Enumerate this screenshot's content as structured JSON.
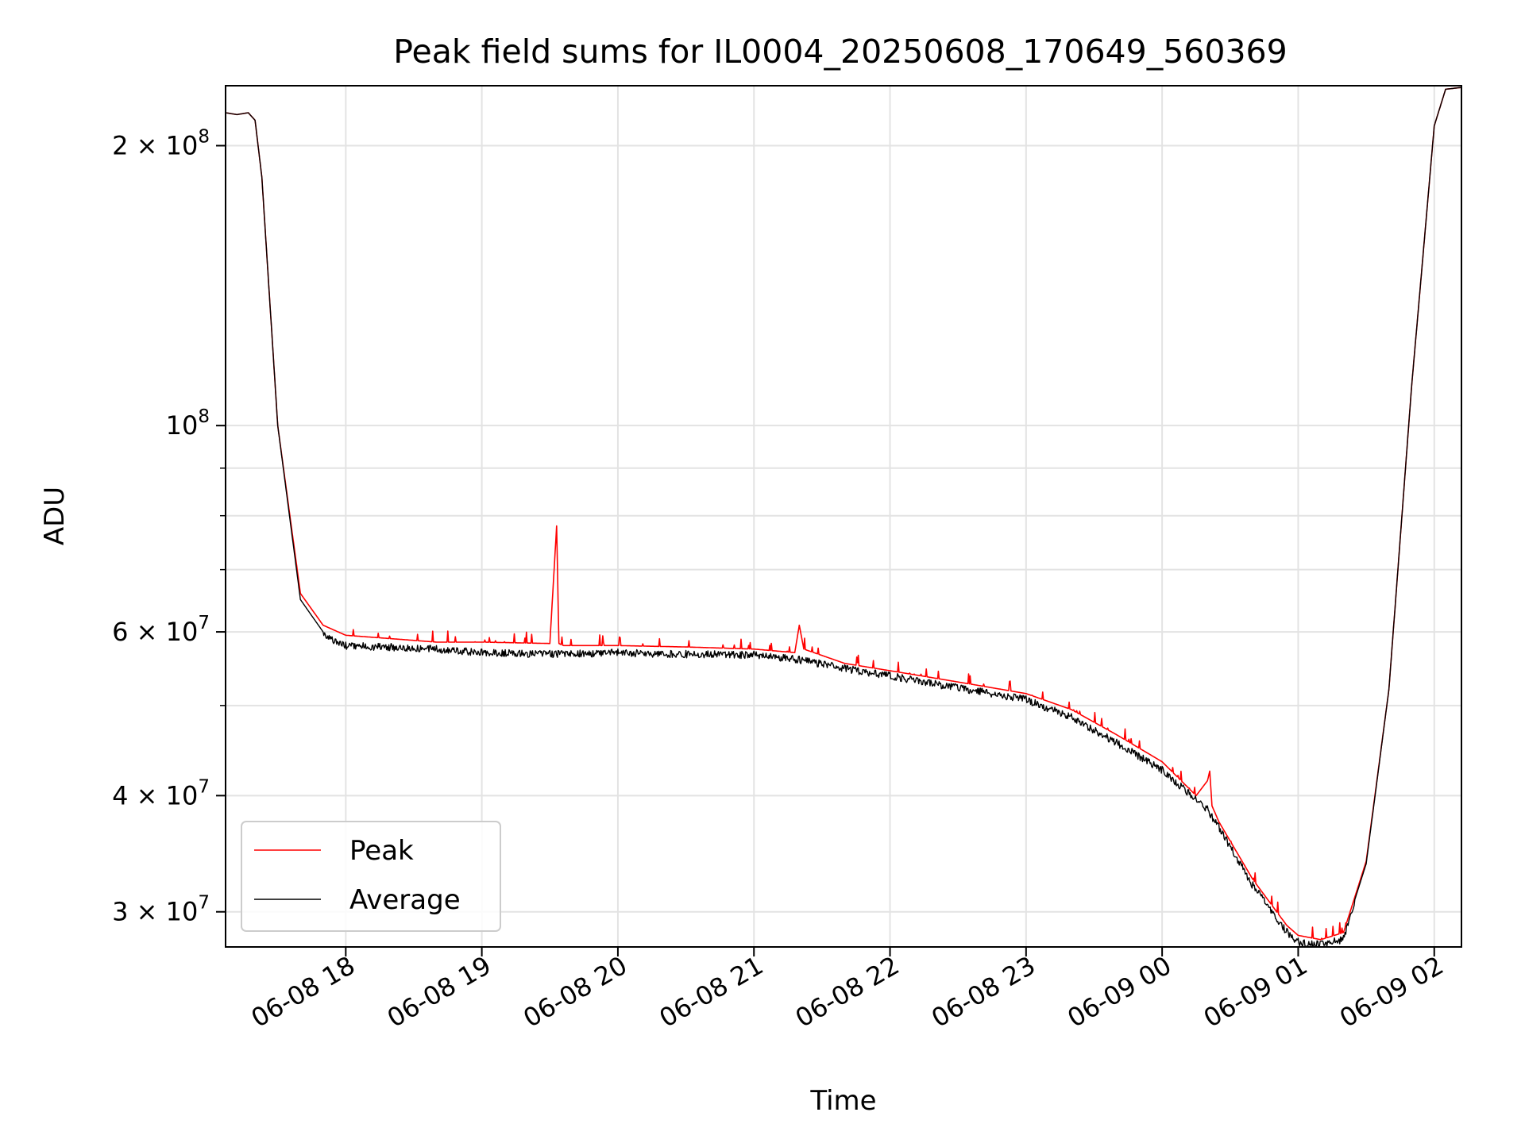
{
  "chart_data": {
    "type": "line",
    "title": "Peak field sums for IL0004_20250608_170649_560369",
    "xlabel": "Time",
    "ylabel": "ADU",
    "yscale": "log",
    "grid": true,
    "legend_position": "lower-left",
    "xlim": [
      "2025-06-08 17:07",
      "2025-06-09 02:12"
    ],
    "ylim": [
      27500000,
      232000000
    ],
    "x_ticks": [
      {
        "value": "2025-06-08 18:00",
        "label": "06-08 18"
      },
      {
        "value": "2025-06-08 19:00",
        "label": "06-08 19"
      },
      {
        "value": "2025-06-08 20:00",
        "label": "06-08 20"
      },
      {
        "value": "2025-06-08 21:00",
        "label": "06-08 21"
      },
      {
        "value": "2025-06-08 22:00",
        "label": "06-08 22"
      },
      {
        "value": "2025-06-08 23:00",
        "label": "06-08 23"
      },
      {
        "value": "2025-06-09 00:00",
        "label": "06-09 00"
      },
      {
        "value": "2025-06-09 01:00",
        "label": "06-09 01"
      },
      {
        "value": "2025-06-09 02:00",
        "label": "06-09 02"
      }
    ],
    "y_ticks": [
      {
        "value": 30000000,
        "mant": "3",
        "exp": "7"
      },
      {
        "value": 40000000,
        "mant": "4",
        "exp": "7"
      },
      {
        "value": 60000000,
        "mant": "6",
        "exp": "7"
      },
      {
        "value": 100000000,
        "mant": "",
        "exp": "8"
      },
      {
        "value": 200000000,
        "mant": "2",
        "exp": "8"
      }
    ],
    "y_minor_ticks": [
      50000000,
      70000000,
      80000000,
      90000000
    ],
    "series": [
      {
        "name": "Peak",
        "color": "#ff0000",
        "x": [
          "2025-06-08 17:07",
          "2025-06-08 17:12",
          "2025-06-08 17:17",
          "2025-06-08 17:20",
          "2025-06-08 17:23",
          "2025-06-08 17:30",
          "2025-06-08 17:40",
          "2025-06-08 17:50",
          "2025-06-08 18:00",
          "2025-06-08 18:20",
          "2025-06-08 18:40",
          "2025-06-08 19:00",
          "2025-06-08 19:30",
          "2025-06-08 19:33",
          "2025-06-08 19:34",
          "2025-06-08 19:36",
          "2025-06-08 20:00",
          "2025-06-08 20:30",
          "2025-06-08 21:00",
          "2025-06-08 21:18",
          "2025-06-08 21:20",
          "2025-06-08 21:22",
          "2025-06-08 21:40",
          "2025-06-08 22:00",
          "2025-06-08 22:20",
          "2025-06-08 22:40",
          "2025-06-08 23:00",
          "2025-06-08 23:20",
          "2025-06-08 23:40",
          "2025-06-09 00:00",
          "2025-06-09 00:15",
          "2025-06-09 00:20",
          "2025-06-09 00:21",
          "2025-06-09 00:22",
          "2025-06-09 00:25",
          "2025-06-09 00:40",
          "2025-06-09 00:55",
          "2025-06-09 01:00",
          "2025-06-09 01:10",
          "2025-06-09 01:20",
          "2025-06-09 01:30",
          "2025-06-09 01:40",
          "2025-06-09 01:50",
          "2025-06-09 02:00",
          "2025-06-09 02:05",
          "2025-06-09 02:12"
        ],
        "values": [
          217000000,
          216000000,
          217000000,
          213000000,
          185000000,
          100000000,
          66000000,
          61000000,
          59500000,
          59000000,
          58500000,
          58500000,
          58300000,
          78000000,
          58300000,
          58000000,
          58000000,
          57800000,
          57500000,
          57000000,
          61000000,
          57500000,
          55500000,
          54500000,
          53500000,
          52500000,
          51500000,
          49500000,
          46500000,
          43500000,
          40000000,
          41500000,
          42500000,
          39000000,
          37500000,
          32500000,
          29000000,
          28300000,
          28000000,
          28500000,
          34000000,
          52000000,
          110000000,
          210000000,
          230000000,
          231000000
        ]
      },
      {
        "name": "Average",
        "color": "#000000",
        "x": [
          "2025-06-08 17:07",
          "2025-06-08 17:12",
          "2025-06-08 17:17",
          "2025-06-08 17:20",
          "2025-06-08 17:23",
          "2025-06-08 17:30",
          "2025-06-08 17:40",
          "2025-06-08 17:50",
          "2025-06-08 18:00",
          "2025-06-08 18:20",
          "2025-06-08 18:40",
          "2025-06-08 19:00",
          "2025-06-08 19:30",
          "2025-06-08 20:00",
          "2025-06-08 20:30",
          "2025-06-08 21:00",
          "2025-06-08 21:20",
          "2025-06-08 21:40",
          "2025-06-08 22:00",
          "2025-06-08 22:20",
          "2025-06-08 22:40",
          "2025-06-08 23:00",
          "2025-06-08 23:20",
          "2025-06-08 23:40",
          "2025-06-09 00:00",
          "2025-06-09 00:20",
          "2025-06-09 00:25",
          "2025-06-09 00:40",
          "2025-06-09 00:55",
          "2025-06-09 01:00",
          "2025-06-09 01:10",
          "2025-06-09 01:20",
          "2025-06-09 01:30",
          "2025-06-09 01:40",
          "2025-06-09 01:50",
          "2025-06-09 02:00",
          "2025-06-09 02:05",
          "2025-06-09 02:12"
        ],
        "values": [
          217000000,
          216000000,
          217000000,
          213000000,
          185000000,
          100000000,
          65000000,
          60000000,
          58500000,
          58300000,
          58000000,
          57500000,
          57300000,
          57500000,
          57300000,
          57200000,
          56500000,
          55300000,
          54300000,
          53200000,
          52200000,
          51200000,
          49000000,
          46000000,
          43000000,
          39000000,
          37300000,
          32300000,
          28800000,
          28100000,
          27900000,
          28300000,
          33800000,
          52000000,
          110000000,
          210000000,
          230000000,
          231000000
        ]
      }
    ]
  }
}
